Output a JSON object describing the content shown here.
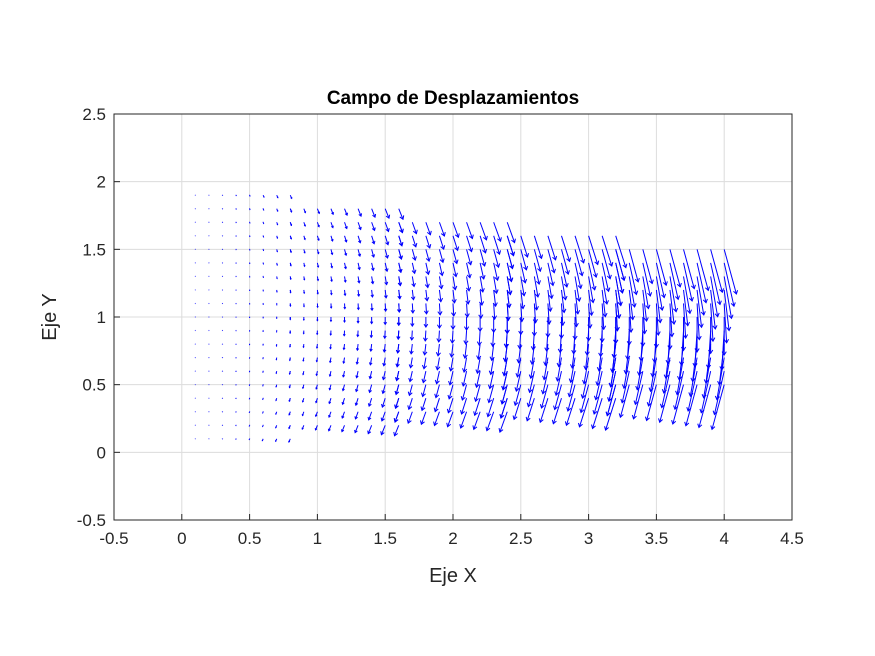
{
  "chart_data": {
    "type": "quiver",
    "title": "Campo de Desplazamientos",
    "xlabel": "Eje X",
    "ylabel": "Eje Y",
    "xlim": [
      -0.5,
      4.5
    ],
    "ylim": [
      -0.5,
      2.5
    ],
    "xticks": [
      -0.5,
      0,
      0.5,
      1,
      1.5,
      2,
      2.5,
      3,
      3.5,
      4,
      4.5
    ],
    "xtick_labels": [
      "-0.5",
      "0",
      "0.5",
      "1",
      "1.5",
      "2",
      "2.5",
      "3",
      "3.5",
      "4",
      "4.5"
    ],
    "yticks": [
      -0.5,
      0,
      0.5,
      1,
      1.5,
      2,
      2.5
    ],
    "ytick_labels": [
      "-0.5",
      "0",
      "0.5",
      "1",
      "1.5",
      "2",
      "2.5"
    ],
    "grid": true,
    "vector_color": "#0000ff",
    "segments": [
      {
        "x_start": 0.1,
        "x_end": 0.8,
        "y_bottom": 0.1,
        "y_top": 1.9,
        "y_bottom_next": 0.2,
        "y_top_next": 1.8
      },
      {
        "x_start": 0.8,
        "x_end": 1.6,
        "y_bottom": 0.2,
        "y_top": 1.8,
        "y_bottom_next": 0.3,
        "y_top_next": 1.7
      },
      {
        "x_start": 1.6,
        "x_end": 2.4,
        "y_bottom": 0.3,
        "y_top": 1.7,
        "y_bottom_next": 0.4,
        "y_top_next": 1.6
      },
      {
        "x_start": 2.4,
        "x_end": 3.2,
        "y_bottom": 0.4,
        "y_top": 1.6,
        "y_bottom_next": 0.5,
        "y_top_next": 1.5
      },
      {
        "x_start": 3.2,
        "x_end": 4.0,
        "y_bottom": 0.5,
        "y_top": 1.5,
        "y_bottom_next": 0.5,
        "y_top_next": 1.5
      }
    ],
    "grid_step": 0.1,
    "max_displacement": {
      "u": 0.03,
      "v": -0.11
    }
  }
}
